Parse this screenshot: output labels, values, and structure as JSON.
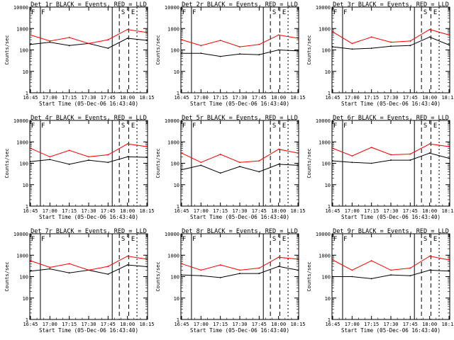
{
  "chart_data": [
    {
      "type": "line",
      "title": "Det 1r BLACK = Events, RED = LLD",
      "xlabel": "Start Time (05-Dec-06 16:43:40)",
      "ylabel": "Counts/sec",
      "x": [
        "16:45",
        "17:00",
        "17:15",
        "17:30",
        "17:45",
        "18:00",
        "18:15"
      ],
      "yscale": "log",
      "ylim": [
        1,
        10000
      ],
      "ytick_labels": [
        "1",
        "10",
        "100",
        "1000",
        "10000"
      ],
      "annotations": [
        "S",
        "E",
        "F"
      ],
      "series": [
        {
          "name": "BLACK",
          "color": "#000000",
          "values": [
            180,
            230,
            160,
            200,
            120,
            350,
            280
          ]
        },
        {
          "name": "RED",
          "color": "#ff0000",
          "values": [
            500,
            260,
            380,
            200,
            300,
            900,
            650
          ]
        }
      ]
    },
    {
      "type": "line",
      "title": "Det 2r BLACK = Events, RED = LLD",
      "xlabel": "Start Time (05-Dec-06 16:43:40)",
      "ylabel": "Counts/sec",
      "x": [
        "16:45",
        "17:00",
        "17:15",
        "17:30",
        "17:45",
        "18:00",
        "18:15"
      ],
      "yscale": "log",
      "ylim": [
        1,
        10000
      ],
      "ytick_labels": [
        "1",
        "10",
        "100",
        "1000",
        "10000"
      ],
      "annotations": [
        "S",
        "E",
        "F"
      ],
      "series": [
        {
          "name": "BLACK",
          "color": "#000000",
          "values": [
            70,
            70,
            50,
            65,
            60,
            100,
            90
          ]
        },
        {
          "name": "RED",
          "color": "#ff0000",
          "values": [
            300,
            160,
            280,
            140,
            180,
            500,
            350
          ]
        }
      ]
    },
    {
      "type": "line",
      "title": "Det 3r BLACK = Events, RED = LLD",
      "xlabel": "Start Time (05-Dec-06 16:43:40)",
      "ylabel": "Counts/sec",
      "x": [
        "16:45",
        "17:00",
        "17:15",
        "17:30",
        "17:45",
        "18:00",
        "18:15"
      ],
      "yscale": "log",
      "ylim": [
        1,
        10000
      ],
      "ytick_labels": [
        "1",
        "10",
        "100",
        "1000",
        "10000"
      ],
      "annotations": [
        "S",
        "E",
        "F"
      ],
      "series": [
        {
          "name": "BLACK",
          "color": "#000000",
          "values": [
            140,
            110,
            120,
            150,
            160,
            400,
            170
          ]
        },
        {
          "name": "RED",
          "color": "#ff0000",
          "values": [
            700,
            200,
            400,
            230,
            260,
            900,
            500
          ]
        }
      ]
    },
    {
      "type": "line",
      "title": "Det 4r BLACK = Events, RED = LLD",
      "xlabel": "Start Time (05-Dec-06 16:43:40)",
      "ylabel": "Counts/sec",
      "x": [
        "16:45",
        "17:00",
        "17:15",
        "17:30",
        "17:45",
        "18:00",
        "18:15"
      ],
      "yscale": "log",
      "ylim": [
        1,
        10000
      ],
      "ytick_labels": [
        "1",
        "10",
        "100",
        "1000",
        "10000"
      ],
      "annotations": [
        "S",
        "E",
        "F"
      ],
      "series": [
        {
          "name": "BLACK",
          "color": "#000000",
          "values": [
            120,
            150,
            90,
            140,
            110,
            200,
            190
          ]
        },
        {
          "name": "RED",
          "color": "#ff0000",
          "values": [
            500,
            200,
            400,
            200,
            250,
            800,
            600
          ]
        }
      ]
    },
    {
      "type": "line",
      "title": "Det 5r BLACK = Events, RED = LLD",
      "xlabel": "Start Time (05-Dec-06 16:43:40)",
      "ylabel": "Counts/sec",
      "x": [
        "16:45",
        "17:00",
        "17:15",
        "17:30",
        "17:45",
        "18:00",
        "18:15"
      ],
      "yscale": "log",
      "ylim": [
        1,
        10000
      ],
      "ytick_labels": [
        "1",
        "10",
        "100",
        "1000",
        "10000"
      ],
      "annotations": [
        "S",
        "E",
        "F"
      ],
      "series": [
        {
          "name": "BLACK",
          "color": "#000000",
          "values": [
            50,
            80,
            35,
            70,
            40,
            90,
            80
          ]
        },
        {
          "name": "RED",
          "color": "#ff0000",
          "values": [
            300,
            110,
            260,
            110,
            130,
            450,
            300
          ]
        }
      ]
    },
    {
      "type": "line",
      "title": "Det 6r BLACK = Events, RED = LLD",
      "xlabel": "Start Time (05-Dec-06 16:43:40)",
      "ylabel": "Counts/sec",
      "x": [
        "16:45",
        "17:00",
        "17:15",
        "17:30",
        "17:45",
        "18:00",
        "18:15"
      ],
      "yscale": "log",
      "ylim": [
        1,
        10000
      ],
      "ytick_labels": [
        "1",
        "10",
        "100",
        "1000",
        "10000"
      ],
      "annotations": [
        "S",
        "E",
        "F"
      ],
      "series": [
        {
          "name": "BLACK",
          "color": "#000000",
          "values": [
            130,
            110,
            100,
            140,
            140,
            300,
            170
          ]
        },
        {
          "name": "RED",
          "color": "#ff0000",
          "values": [
            500,
            220,
            550,
            250,
            270,
            800,
            600
          ]
        }
      ]
    },
    {
      "type": "line",
      "title": "Det 7r BLACK = Events, RED = LLD",
      "xlabel": "Start Time (05-Dec-06 16:43:40)",
      "ylabel": "Counts/sec",
      "x": [
        "16:45",
        "17:00",
        "17:15",
        "17:30",
        "17:45",
        "18:00",
        "18:15"
      ],
      "yscale": "log",
      "ylim": [
        1,
        10000
      ],
      "ytick_labels": [
        "1",
        "10",
        "100",
        "1000",
        "10000"
      ],
      "annotations": [
        "S",
        "E",
        "F"
      ],
      "series": [
        {
          "name": "BLACK",
          "color": "#000000",
          "values": [
            180,
            230,
            150,
            200,
            130,
            350,
            290
          ]
        },
        {
          "name": "RED",
          "color": "#ff0000",
          "values": [
            550,
            270,
            400,
            200,
            300,
            900,
            650
          ]
        }
      ]
    },
    {
      "type": "line",
      "title": "Det 8r BLACK = Events, RED = LLD",
      "xlabel": "Start Time (05-Dec-06 16:43:40)",
      "ylabel": "Counts/sec",
      "x": [
        "16:45",
        "17:00",
        "17:15",
        "17:30",
        "17:45",
        "18:00",
        "18:15"
      ],
      "yscale": "log",
      "ylim": [
        1,
        10000
      ],
      "ytick_labels": [
        "1",
        "10",
        "100",
        "1000",
        "10000"
      ],
      "annotations": [
        "S",
        "E",
        "F"
      ],
      "series": [
        {
          "name": "BLACK",
          "color": "#000000",
          "values": [
            120,
            110,
            90,
            140,
            140,
            300,
            200
          ]
        },
        {
          "name": "RED",
          "color": "#ff0000",
          "values": [
            400,
            200,
            350,
            200,
            250,
            800,
            650
          ]
        }
      ]
    },
    {
      "type": "line",
      "title": "Det 9r BLACK = Events, RED = LLD",
      "xlabel": "Start Time (05-Dec-06 16:43:40)",
      "ylabel": "Counts/sec",
      "x": [
        "16:45",
        "17:00",
        "17:15",
        "17:30",
        "17:45",
        "18:00",
        "18:15"
      ],
      "yscale": "log",
      "ylim": [
        1,
        10000
      ],
      "ytick_labels": [
        "1",
        "10",
        "100",
        "1000",
        "10000"
      ],
      "annotations": [
        "S",
        "E",
        "F"
      ],
      "series": [
        {
          "name": "BLACK",
          "color": "#000000",
          "values": [
            100,
            100,
            80,
            120,
            110,
            200,
            180
          ]
        },
        {
          "name": "RED",
          "color": "#ff0000",
          "values": [
            600,
            200,
            550,
            200,
            250,
            900,
            600
          ]
        }
      ]
    }
  ]
}
